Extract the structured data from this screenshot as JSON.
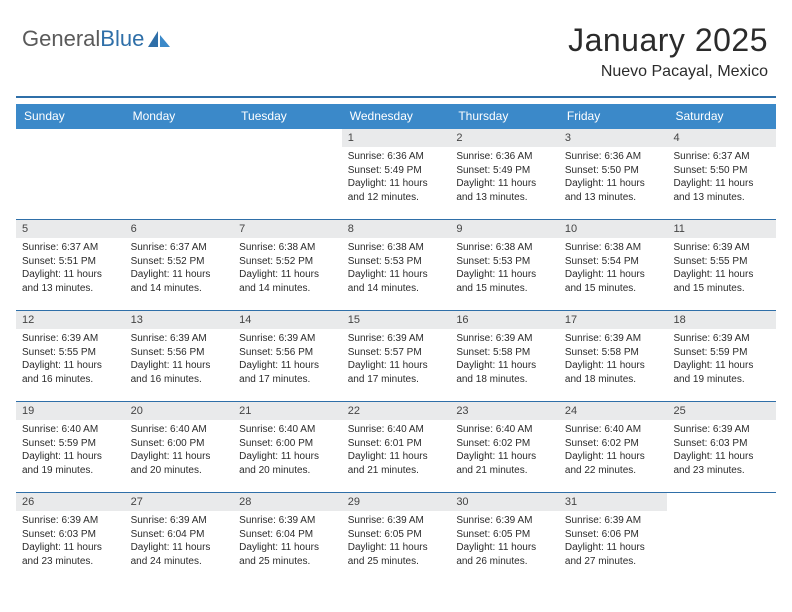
{
  "brand": {
    "part1": "General",
    "part2": "Blue"
  },
  "title": "January 2025",
  "location": "Nuevo Pacayal, Mexico",
  "colors": {
    "header_bg": "#3b89c9",
    "header_text": "#ffffff",
    "accent": "#2f6fa8",
    "daynum_bg": "#e9eaeb",
    "text": "#2b2b2b",
    "page_bg": "#ffffff"
  },
  "typography": {
    "title_fontsize": 32,
    "location_fontsize": 16,
    "header_fontsize": 12,
    "daynum_fontsize": 11,
    "body_fontsize": 10
  },
  "day_headers": [
    "Sunday",
    "Monday",
    "Tuesday",
    "Wednesday",
    "Thursday",
    "Friday",
    "Saturday"
  ],
  "weeks": [
    [
      null,
      null,
      null,
      {
        "n": "1",
        "sunrise": "Sunrise: 6:36 AM",
        "sunset": "Sunset: 5:49 PM",
        "daylight": "Daylight: 11 hours and 12 minutes."
      },
      {
        "n": "2",
        "sunrise": "Sunrise: 6:36 AM",
        "sunset": "Sunset: 5:49 PM",
        "daylight": "Daylight: 11 hours and 13 minutes."
      },
      {
        "n": "3",
        "sunrise": "Sunrise: 6:36 AM",
        "sunset": "Sunset: 5:50 PM",
        "daylight": "Daylight: 11 hours and 13 minutes."
      },
      {
        "n": "4",
        "sunrise": "Sunrise: 6:37 AM",
        "sunset": "Sunset: 5:50 PM",
        "daylight": "Daylight: 11 hours and 13 minutes."
      }
    ],
    [
      {
        "n": "5",
        "sunrise": "Sunrise: 6:37 AM",
        "sunset": "Sunset: 5:51 PM",
        "daylight": "Daylight: 11 hours and 13 minutes."
      },
      {
        "n": "6",
        "sunrise": "Sunrise: 6:37 AM",
        "sunset": "Sunset: 5:52 PM",
        "daylight": "Daylight: 11 hours and 14 minutes."
      },
      {
        "n": "7",
        "sunrise": "Sunrise: 6:38 AM",
        "sunset": "Sunset: 5:52 PM",
        "daylight": "Daylight: 11 hours and 14 minutes."
      },
      {
        "n": "8",
        "sunrise": "Sunrise: 6:38 AM",
        "sunset": "Sunset: 5:53 PM",
        "daylight": "Daylight: 11 hours and 14 minutes."
      },
      {
        "n": "9",
        "sunrise": "Sunrise: 6:38 AM",
        "sunset": "Sunset: 5:53 PM",
        "daylight": "Daylight: 11 hours and 15 minutes."
      },
      {
        "n": "10",
        "sunrise": "Sunrise: 6:38 AM",
        "sunset": "Sunset: 5:54 PM",
        "daylight": "Daylight: 11 hours and 15 minutes."
      },
      {
        "n": "11",
        "sunrise": "Sunrise: 6:39 AM",
        "sunset": "Sunset: 5:55 PM",
        "daylight": "Daylight: 11 hours and 15 minutes."
      }
    ],
    [
      {
        "n": "12",
        "sunrise": "Sunrise: 6:39 AM",
        "sunset": "Sunset: 5:55 PM",
        "daylight": "Daylight: 11 hours and 16 minutes."
      },
      {
        "n": "13",
        "sunrise": "Sunrise: 6:39 AM",
        "sunset": "Sunset: 5:56 PM",
        "daylight": "Daylight: 11 hours and 16 minutes."
      },
      {
        "n": "14",
        "sunrise": "Sunrise: 6:39 AM",
        "sunset": "Sunset: 5:56 PM",
        "daylight": "Daylight: 11 hours and 17 minutes."
      },
      {
        "n": "15",
        "sunrise": "Sunrise: 6:39 AM",
        "sunset": "Sunset: 5:57 PM",
        "daylight": "Daylight: 11 hours and 17 minutes."
      },
      {
        "n": "16",
        "sunrise": "Sunrise: 6:39 AM",
        "sunset": "Sunset: 5:58 PM",
        "daylight": "Daylight: 11 hours and 18 minutes."
      },
      {
        "n": "17",
        "sunrise": "Sunrise: 6:39 AM",
        "sunset": "Sunset: 5:58 PM",
        "daylight": "Daylight: 11 hours and 18 minutes."
      },
      {
        "n": "18",
        "sunrise": "Sunrise: 6:39 AM",
        "sunset": "Sunset: 5:59 PM",
        "daylight": "Daylight: 11 hours and 19 minutes."
      }
    ],
    [
      {
        "n": "19",
        "sunrise": "Sunrise: 6:40 AM",
        "sunset": "Sunset: 5:59 PM",
        "daylight": "Daylight: 11 hours and 19 minutes."
      },
      {
        "n": "20",
        "sunrise": "Sunrise: 6:40 AM",
        "sunset": "Sunset: 6:00 PM",
        "daylight": "Daylight: 11 hours and 20 minutes."
      },
      {
        "n": "21",
        "sunrise": "Sunrise: 6:40 AM",
        "sunset": "Sunset: 6:00 PM",
        "daylight": "Daylight: 11 hours and 20 minutes."
      },
      {
        "n": "22",
        "sunrise": "Sunrise: 6:40 AM",
        "sunset": "Sunset: 6:01 PM",
        "daylight": "Daylight: 11 hours and 21 minutes."
      },
      {
        "n": "23",
        "sunrise": "Sunrise: 6:40 AM",
        "sunset": "Sunset: 6:02 PM",
        "daylight": "Daylight: 11 hours and 21 minutes."
      },
      {
        "n": "24",
        "sunrise": "Sunrise: 6:40 AM",
        "sunset": "Sunset: 6:02 PM",
        "daylight": "Daylight: 11 hours and 22 minutes."
      },
      {
        "n": "25",
        "sunrise": "Sunrise: 6:39 AM",
        "sunset": "Sunset: 6:03 PM",
        "daylight": "Daylight: 11 hours and 23 minutes."
      }
    ],
    [
      {
        "n": "26",
        "sunrise": "Sunrise: 6:39 AM",
        "sunset": "Sunset: 6:03 PM",
        "daylight": "Daylight: 11 hours and 23 minutes."
      },
      {
        "n": "27",
        "sunrise": "Sunrise: 6:39 AM",
        "sunset": "Sunset: 6:04 PM",
        "daylight": "Daylight: 11 hours and 24 minutes."
      },
      {
        "n": "28",
        "sunrise": "Sunrise: 6:39 AM",
        "sunset": "Sunset: 6:04 PM",
        "daylight": "Daylight: 11 hours and 25 minutes."
      },
      {
        "n": "29",
        "sunrise": "Sunrise: 6:39 AM",
        "sunset": "Sunset: 6:05 PM",
        "daylight": "Daylight: 11 hours and 25 minutes."
      },
      {
        "n": "30",
        "sunrise": "Sunrise: 6:39 AM",
        "sunset": "Sunset: 6:05 PM",
        "daylight": "Daylight: 11 hours and 26 minutes."
      },
      {
        "n": "31",
        "sunrise": "Sunrise: 6:39 AM",
        "sunset": "Sunset: 6:06 PM",
        "daylight": "Daylight: 11 hours and 27 minutes."
      },
      null
    ]
  ]
}
